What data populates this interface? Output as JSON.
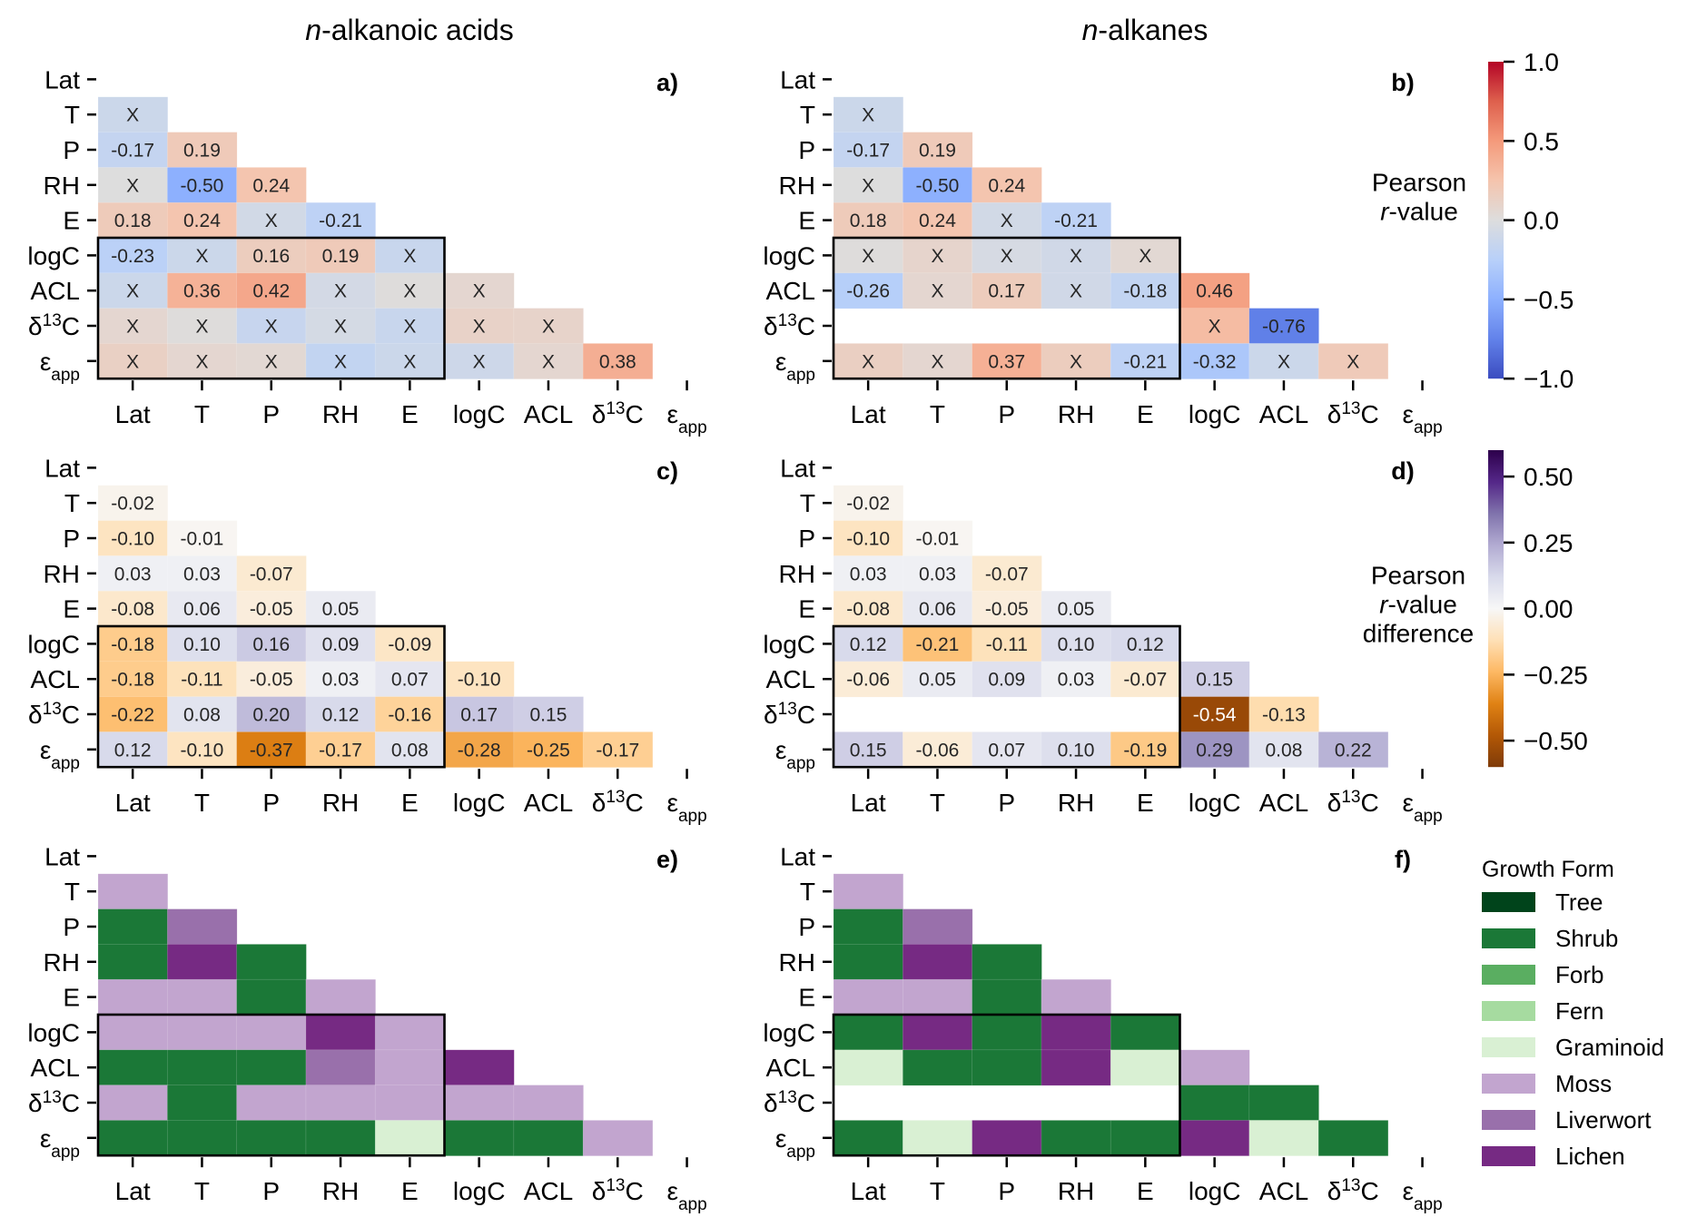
{
  "columns": [
    {
      "title_italic": "n",
      "title_rest": "-alkanoic acids"
    },
    {
      "title_italic": "n",
      "title_rest": "-alkanes"
    }
  ],
  "variables": [
    {
      "base": "Lat",
      "sup": "",
      "sub": ""
    },
    {
      "base": "T",
      "sup": "",
      "sub": ""
    },
    {
      "base": "P",
      "sup": "",
      "sub": ""
    },
    {
      "base": "RH",
      "sup": "",
      "sub": ""
    },
    {
      "base": "E",
      "sup": "",
      "sub": ""
    },
    {
      "base": "logC",
      "sup": "",
      "sub": ""
    },
    {
      "base": "ACL",
      "sup": "",
      "sub": ""
    },
    {
      "base": "δ",
      "sup": "13",
      "sub": "",
      "tail": "C"
    },
    {
      "base": "ε",
      "sup": "",
      "sub": "app"
    }
  ],
  "colorbars": [
    {
      "title_lines": [
        "Pearson",
        "r-value"
      ],
      "title_italic_prefix": "r",
      "cmap": "coolwarm",
      "range": [
        -1.0,
        1.0
      ],
      "ticks": [
        1.0,
        0.5,
        0.0,
        -0.5,
        -1.0
      ],
      "tick_labels": [
        "1.0",
        "0.5",
        "0.0",
        "−0.5",
        "−1.0"
      ]
    },
    {
      "title_lines": [
        "Pearson",
        "r-value",
        "difference"
      ],
      "title_italic_prefix": "r",
      "cmap": "PuOr",
      "range": [
        -0.6,
        0.6
      ],
      "ticks": [
        0.5,
        0.25,
        0.0,
        -0.25,
        -0.5
      ],
      "tick_labels": [
        "0.50",
        "0.25",
        "0.00",
        "−0.25",
        "−0.50"
      ]
    }
  ],
  "legend": {
    "title": "Growth Form",
    "items": [
      {
        "label": "Tree",
        "color": "#00441b"
      },
      {
        "label": "Shrub",
        "color": "#1b7837"
      },
      {
        "label": "Forb",
        "color": "#5aae61"
      },
      {
        "label": "Fern",
        "color": "#a6dba0"
      },
      {
        "label": "Graminoid",
        "color": "#d9f0d3"
      },
      {
        "label": "Moss",
        "color": "#c2a5cf"
      },
      {
        "label": "Liverwort",
        "color": "#9970ab"
      },
      {
        "label": "Lichen",
        "color": "#762a83"
      }
    ]
  },
  "chart_data": [
    {
      "panel": "a)",
      "type": "heatmap",
      "column": 0,
      "row": 0,
      "description": "Lower-triangle Pearson correlation matrix, n-alkanoic acids. 'X' marks non-significant correlations; v = underlying r-value (X values estimated from color).",
      "colorbar": 0,
      "highlight_box": {
        "rows": [
          "logC",
          "εapp"
        ],
        "cols": [
          "Lat",
          "E"
        ]
      },
      "cells": [
        [],
        [
          {
            "label": "X",
            "v": -0.12
          }
        ],
        [
          {
            "label": "-0.17",
            "v": -0.17
          },
          {
            "label": "0.19",
            "v": 0.19
          }
        ],
        [
          {
            "label": "X",
            "v": 0.0
          },
          {
            "label": "-0.50",
            "v": -0.5
          },
          {
            "label": "0.24",
            "v": 0.24
          }
        ],
        [
          {
            "label": "0.18",
            "v": 0.18
          },
          {
            "label": "0.24",
            "v": 0.24
          },
          {
            "label": "X",
            "v": -0.08
          },
          {
            "label": "-0.21",
            "v": -0.21
          }
        ],
        [
          {
            "label": "-0.23",
            "v": -0.23
          },
          {
            "label": "X",
            "v": -0.12
          },
          {
            "label": "0.16",
            "v": 0.16
          },
          {
            "label": "0.19",
            "v": 0.19
          },
          {
            "label": "X",
            "v": -0.14
          }
        ],
        [
          {
            "label": "X",
            "v": -0.12
          },
          {
            "label": "0.36",
            "v": 0.36
          },
          {
            "label": "0.42",
            "v": 0.42
          },
          {
            "label": "X",
            "v": -0.07
          },
          {
            "label": "X",
            "v": 0.01
          },
          {
            "label": "X",
            "v": 0.07
          }
        ],
        [
          {
            "label": "X",
            "v": 0.07
          },
          {
            "label": "X",
            "v": 0.01
          },
          {
            "label": "X",
            "v": -0.15
          },
          {
            "label": "X",
            "v": -0.06
          },
          {
            "label": "X",
            "v": -0.14
          },
          {
            "label": "X",
            "v": 0.11
          },
          {
            "label": "X",
            "v": 0.1
          }
        ],
        [
          {
            "label": "X",
            "v": 0.13
          },
          {
            "label": "X",
            "v": 0.07
          },
          {
            "label": "X",
            "v": 0.05
          },
          {
            "label": "X",
            "v": -0.18
          },
          {
            "label": "X",
            "v": -0.12
          },
          {
            "label": "X",
            "v": -0.11
          },
          {
            "label": "X",
            "v": 0.07
          },
          {
            "label": "0.38",
            "v": 0.38
          }
        ]
      ]
    },
    {
      "panel": "b)",
      "type": "heatmap",
      "column": 1,
      "row": 0,
      "description": "Lower-triangle Pearson correlation matrix, n-alkanes.",
      "colorbar": 0,
      "highlight_box": {
        "rows": [
          "logC",
          "εapp"
        ],
        "cols": [
          "Lat",
          "E"
        ]
      },
      "cells": [
        [],
        [
          {
            "label": "X",
            "v": -0.12
          }
        ],
        [
          {
            "label": "-0.17",
            "v": -0.17
          },
          {
            "label": "0.19",
            "v": 0.19
          }
        ],
        [
          {
            "label": "X",
            "v": 0.0
          },
          {
            "label": "-0.50",
            "v": -0.5
          },
          {
            "label": "0.24",
            "v": 0.24
          }
        ],
        [
          {
            "label": "0.18",
            "v": 0.18
          },
          {
            "label": "0.24",
            "v": 0.24
          },
          {
            "label": "X",
            "v": -0.08
          },
          {
            "label": "-0.21",
            "v": -0.21
          }
        ],
        [
          {
            "label": "X",
            "v": 0.01
          },
          {
            "label": "X",
            "v": 0.09
          },
          {
            "label": "X",
            "v": -0.05
          },
          {
            "label": "X",
            "v": -0.09
          },
          {
            "label": "X",
            "v": 0.05
          }
        ],
        [
          {
            "label": "-0.26",
            "v": -0.26
          },
          {
            "label": "X",
            "v": 0.07
          },
          {
            "label": "0.17",
            "v": 0.17
          },
          {
            "label": "X",
            "v": -0.09
          },
          {
            "label": "-0.18",
            "v": -0.18
          },
          {
            "label": "0.46",
            "v": 0.46
          }
        ],
        [
          null,
          null,
          null,
          null,
          null,
          {
            "label": "X",
            "v": 0.3
          },
          {
            "label": "-0.76",
            "v": -0.76
          }
        ],
        [
          {
            "label": "X",
            "v": 0.14
          },
          {
            "label": "X",
            "v": 0.07
          },
          {
            "label": "0.37",
            "v": 0.37
          },
          {
            "label": "X",
            "v": 0.16
          },
          {
            "label": "-0.21",
            "v": -0.21
          },
          {
            "label": "-0.32",
            "v": -0.32
          },
          {
            "label": "X",
            "v": -0.12
          },
          {
            "label": "X",
            "v": 0.19
          }
        ]
      ]
    },
    {
      "panel": "c)",
      "type": "heatmap",
      "column": 0,
      "row": 1,
      "description": "Difference in Pearson r-values, n-alkanoic acids.",
      "colorbar": 1,
      "highlight_box": {
        "rows": [
          "logC",
          "εapp"
        ],
        "cols": [
          "Lat",
          "E"
        ]
      },
      "cells": [
        [],
        [
          {
            "label": "-0.02",
            "v": -0.02
          }
        ],
        [
          {
            "label": "-0.10",
            "v": -0.1
          },
          {
            "label": "-0.01",
            "v": -0.01
          }
        ],
        [
          {
            "label": "0.03",
            "v": 0.03
          },
          {
            "label": "0.03",
            "v": 0.03
          },
          {
            "label": "-0.07",
            "v": -0.07
          }
        ],
        [
          {
            "label": "-0.08",
            "v": -0.08
          },
          {
            "label": "0.06",
            "v": 0.06
          },
          {
            "label": "-0.05",
            "v": -0.05
          },
          {
            "label": "0.05",
            "v": 0.05
          }
        ],
        [
          {
            "label": "-0.18",
            "v": -0.18
          },
          {
            "label": "0.10",
            "v": 0.1
          },
          {
            "label": "0.16",
            "v": 0.16
          },
          {
            "label": "0.09",
            "v": 0.09
          },
          {
            "label": "-0.09",
            "v": -0.09
          }
        ],
        [
          {
            "label": "-0.18",
            "v": -0.18
          },
          {
            "label": "-0.11",
            "v": -0.11
          },
          {
            "label": "-0.05",
            "v": -0.05
          },
          {
            "label": "0.03",
            "v": 0.03
          },
          {
            "label": "0.07",
            "v": 0.07
          },
          {
            "label": "-0.10",
            "v": -0.1
          }
        ],
        [
          {
            "label": "-0.22",
            "v": -0.22
          },
          {
            "label": "0.08",
            "v": 0.08
          },
          {
            "label": "0.20",
            "v": 0.2
          },
          {
            "label": "0.12",
            "v": 0.12
          },
          {
            "label": "-0.16",
            "v": -0.16
          },
          {
            "label": "0.17",
            "v": 0.17
          },
          {
            "label": "0.15",
            "v": 0.15
          }
        ],
        [
          {
            "label": "0.12",
            "v": 0.12
          },
          {
            "label": "-0.10",
            "v": -0.1
          },
          {
            "label": "-0.37",
            "v": -0.37
          },
          {
            "label": "-0.17",
            "v": -0.17
          },
          {
            "label": "0.08",
            "v": 0.08
          },
          {
            "label": "-0.28",
            "v": -0.28
          },
          {
            "label": "-0.25",
            "v": -0.25
          },
          {
            "label": "-0.17",
            "v": -0.17
          }
        ]
      ]
    },
    {
      "panel": "d)",
      "type": "heatmap",
      "column": 1,
      "row": 1,
      "description": "Difference in Pearson r-values, n-alkanes.",
      "colorbar": 1,
      "highlight_box": {
        "rows": [
          "logC",
          "εapp"
        ],
        "cols": [
          "Lat",
          "E"
        ]
      },
      "cells": [
        [],
        [
          {
            "label": "-0.02",
            "v": -0.02
          }
        ],
        [
          {
            "label": "-0.10",
            "v": -0.1
          },
          {
            "label": "-0.01",
            "v": -0.01
          }
        ],
        [
          {
            "label": "0.03",
            "v": 0.03
          },
          {
            "label": "0.03",
            "v": 0.03
          },
          {
            "label": "-0.07",
            "v": -0.07
          }
        ],
        [
          {
            "label": "-0.08",
            "v": -0.08
          },
          {
            "label": "0.06",
            "v": 0.06
          },
          {
            "label": "-0.05",
            "v": -0.05
          },
          {
            "label": "0.05",
            "v": 0.05
          }
        ],
        [
          {
            "label": "0.12",
            "v": 0.12
          },
          {
            "label": "-0.21",
            "v": -0.21
          },
          {
            "label": "-0.11",
            "v": -0.11
          },
          {
            "label": "0.10",
            "v": 0.1
          },
          {
            "label": "0.12",
            "v": 0.12
          }
        ],
        [
          {
            "label": "-0.06",
            "v": -0.06
          },
          {
            "label": "0.05",
            "v": 0.05
          },
          {
            "label": "0.09",
            "v": 0.09
          },
          {
            "label": "0.03",
            "v": 0.03
          },
          {
            "label": "-0.07",
            "v": -0.07
          },
          {
            "label": "0.15",
            "v": 0.15
          }
        ],
        [
          null,
          null,
          null,
          null,
          null,
          {
            "label": "-0.54",
            "v": -0.54
          },
          {
            "label": "-0.13",
            "v": -0.13
          }
        ],
        [
          {
            "label": "0.15",
            "v": 0.15
          },
          {
            "label": "-0.06",
            "v": -0.06
          },
          {
            "label": "0.07",
            "v": 0.07
          },
          {
            "label": "0.10",
            "v": 0.1
          },
          {
            "label": "-0.19",
            "v": -0.19
          },
          {
            "label": "0.29",
            "v": 0.29
          },
          {
            "label": "0.08",
            "v": 0.08
          },
          {
            "label": "0.22",
            "v": 0.22
          }
        ]
      ]
    },
    {
      "panel": "e)",
      "type": "heatmap",
      "column": 0,
      "row": 2,
      "description": "Growth form with the most significant influence, n-alkanoic acids (categorical).",
      "legend": true,
      "highlight_box": {
        "rows": [
          "logC",
          "εapp"
        ],
        "cols": [
          "Lat",
          "E"
        ]
      },
      "cells": [
        [],
        [
          "Moss"
        ],
        [
          "Shrub",
          "Liverwort"
        ],
        [
          "Shrub",
          "Lichen",
          "Shrub"
        ],
        [
          "Moss",
          "Moss",
          "Shrub",
          "Moss"
        ],
        [
          "Moss",
          "Moss",
          "Moss",
          "Lichen",
          "Moss"
        ],
        [
          "Shrub",
          "Shrub",
          "Shrub",
          "Liverwort",
          "Moss",
          "Lichen"
        ],
        [
          "Moss",
          "Shrub",
          "Moss",
          "Moss",
          "Moss",
          "Moss",
          "Moss"
        ],
        [
          "Shrub",
          "Shrub",
          "Shrub",
          "Shrub",
          "Graminoid",
          "Shrub",
          "Shrub",
          "Moss"
        ]
      ]
    },
    {
      "panel": "f)",
      "type": "heatmap",
      "column": 1,
      "row": 2,
      "description": "Growth form with the most significant influence, n-alkanes (categorical).",
      "legend": true,
      "highlight_box": {
        "rows": [
          "logC",
          "εapp"
        ],
        "cols": [
          "Lat",
          "E"
        ]
      },
      "cells": [
        [],
        [
          "Moss"
        ],
        [
          "Shrub",
          "Liverwort"
        ],
        [
          "Shrub",
          "Lichen",
          "Shrub"
        ],
        [
          "Moss",
          "Moss",
          "Shrub",
          "Moss"
        ],
        [
          "Shrub",
          "Lichen",
          "Shrub",
          "Lichen",
          "Shrub"
        ],
        [
          "Graminoid",
          "Shrub",
          "Shrub",
          "Lichen",
          "Graminoid",
          "Moss"
        ],
        [
          null,
          null,
          null,
          null,
          null,
          "Shrub",
          "Shrub"
        ],
        [
          "Shrub",
          "Graminoid",
          "Lichen",
          "Shrub",
          "Shrub",
          "Lichen",
          "Graminoid",
          "Shrub"
        ]
      ]
    }
  ]
}
